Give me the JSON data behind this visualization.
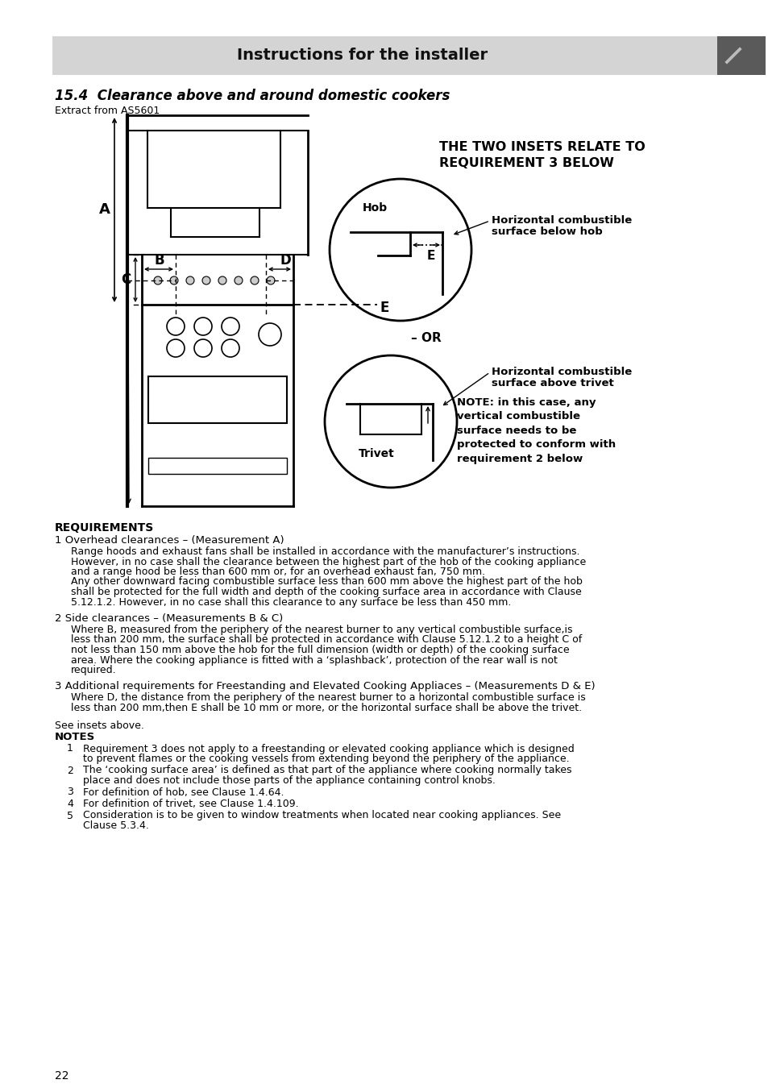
{
  "header_text": "Instructions for the installer",
  "header_bg": "#d4d4d4",
  "page_bg": "#ffffff",
  "section_title": "15.4  Clearance above and around domestic cookers",
  "extract_from": "Extract from AS5601",
  "inset_label_line1": "THE TWO INSETS RELATE TO",
  "inset_label_line2": "REQUIREMENT 3 BELOW",
  "hob_label": "Hob",
  "trivet_label": "Trivet",
  "or_label": "OR",
  "horiz_comb_below_l1": "Horizontal combustible",
  "horiz_comb_below_l2": "surface below hob",
  "horiz_comb_above_l1": "Horizontal combustible",
  "horiz_comb_above_l2": "surface above trivet",
  "note_bold": "NOTE: in this case, any\nvertical combustible\nsurface needs to be\nprotected to conform with\nrequirement 2 below",
  "req_title": "REQUIREMENTS",
  "req1_head": "1 Overhead clearances – (Measurement A)",
  "req1_lines": [
    "Range hoods and exhaust fans shall be installed in accordance with the manufacturer’s instructions.",
    "However, in no case shall the clearance between the highest part of the hob of the cooking appliance",
    "and a range hood be less than 600 mm or, for an overhead exhaust fan, 750 mm.",
    "Any other downward facing combustible surface less than 600 mm above the highest part of the hob",
    "shall be protected for the full width and depth of the cooking surface area in accordance with Clause",
    "5.12.1.2. However, in no case shall this clearance to any surface be less than 450 mm."
  ],
  "req2_head": "2 Side clearances – (Measurements B & C)",
  "req2_lines": [
    "Where B, measured from the periphery of the nearest burner to any vertical combustible surface,is",
    "less than 200 mm, the surface shall be protected in accordance with Clause 5.12.1.2 to a height C of",
    "not less than 150 mm above the hob for the full dimension (width or depth) of the cooking surface",
    "area. Where the cooking appliance is fitted with a ‘splashback’, protection of the rear wall is not",
    "required."
  ],
  "req3_head": "3 Additional requirements for Freestanding and Elevated Cooking Appliaces – (Measurements D & E)",
  "req3_lines": [
    "Where D, the distance from the periphery of the nearest burner to a horizontal combustible surface is",
    "less than 200 mm,then E shall be 10 mm or more, or the horizontal surface shall be above the trivet."
  ],
  "see_insets": "See insets above.",
  "notes_title": "NOTES",
  "notes": [
    [
      "Requirement 3 does not apply to a freestanding or elevated cooking appliance which is designed",
      "to prevent flames or the cooking vessels from extending beyond the periphery of the appliance."
    ],
    [
      "The ‘cooking surface area’ is defined as that part of the appliance where cooking normally takes",
      "place and does not include those parts of the appliance containing control knobs."
    ],
    [
      "For definition of hob, see Clause 1.4.64."
    ],
    [
      "For definition of trivet, see Clause 1.4.109."
    ],
    [
      "Consideration is to be given to window treatments when located near cooking appliances. See",
      "Clause 5.3.4."
    ]
  ],
  "page_num": "22"
}
